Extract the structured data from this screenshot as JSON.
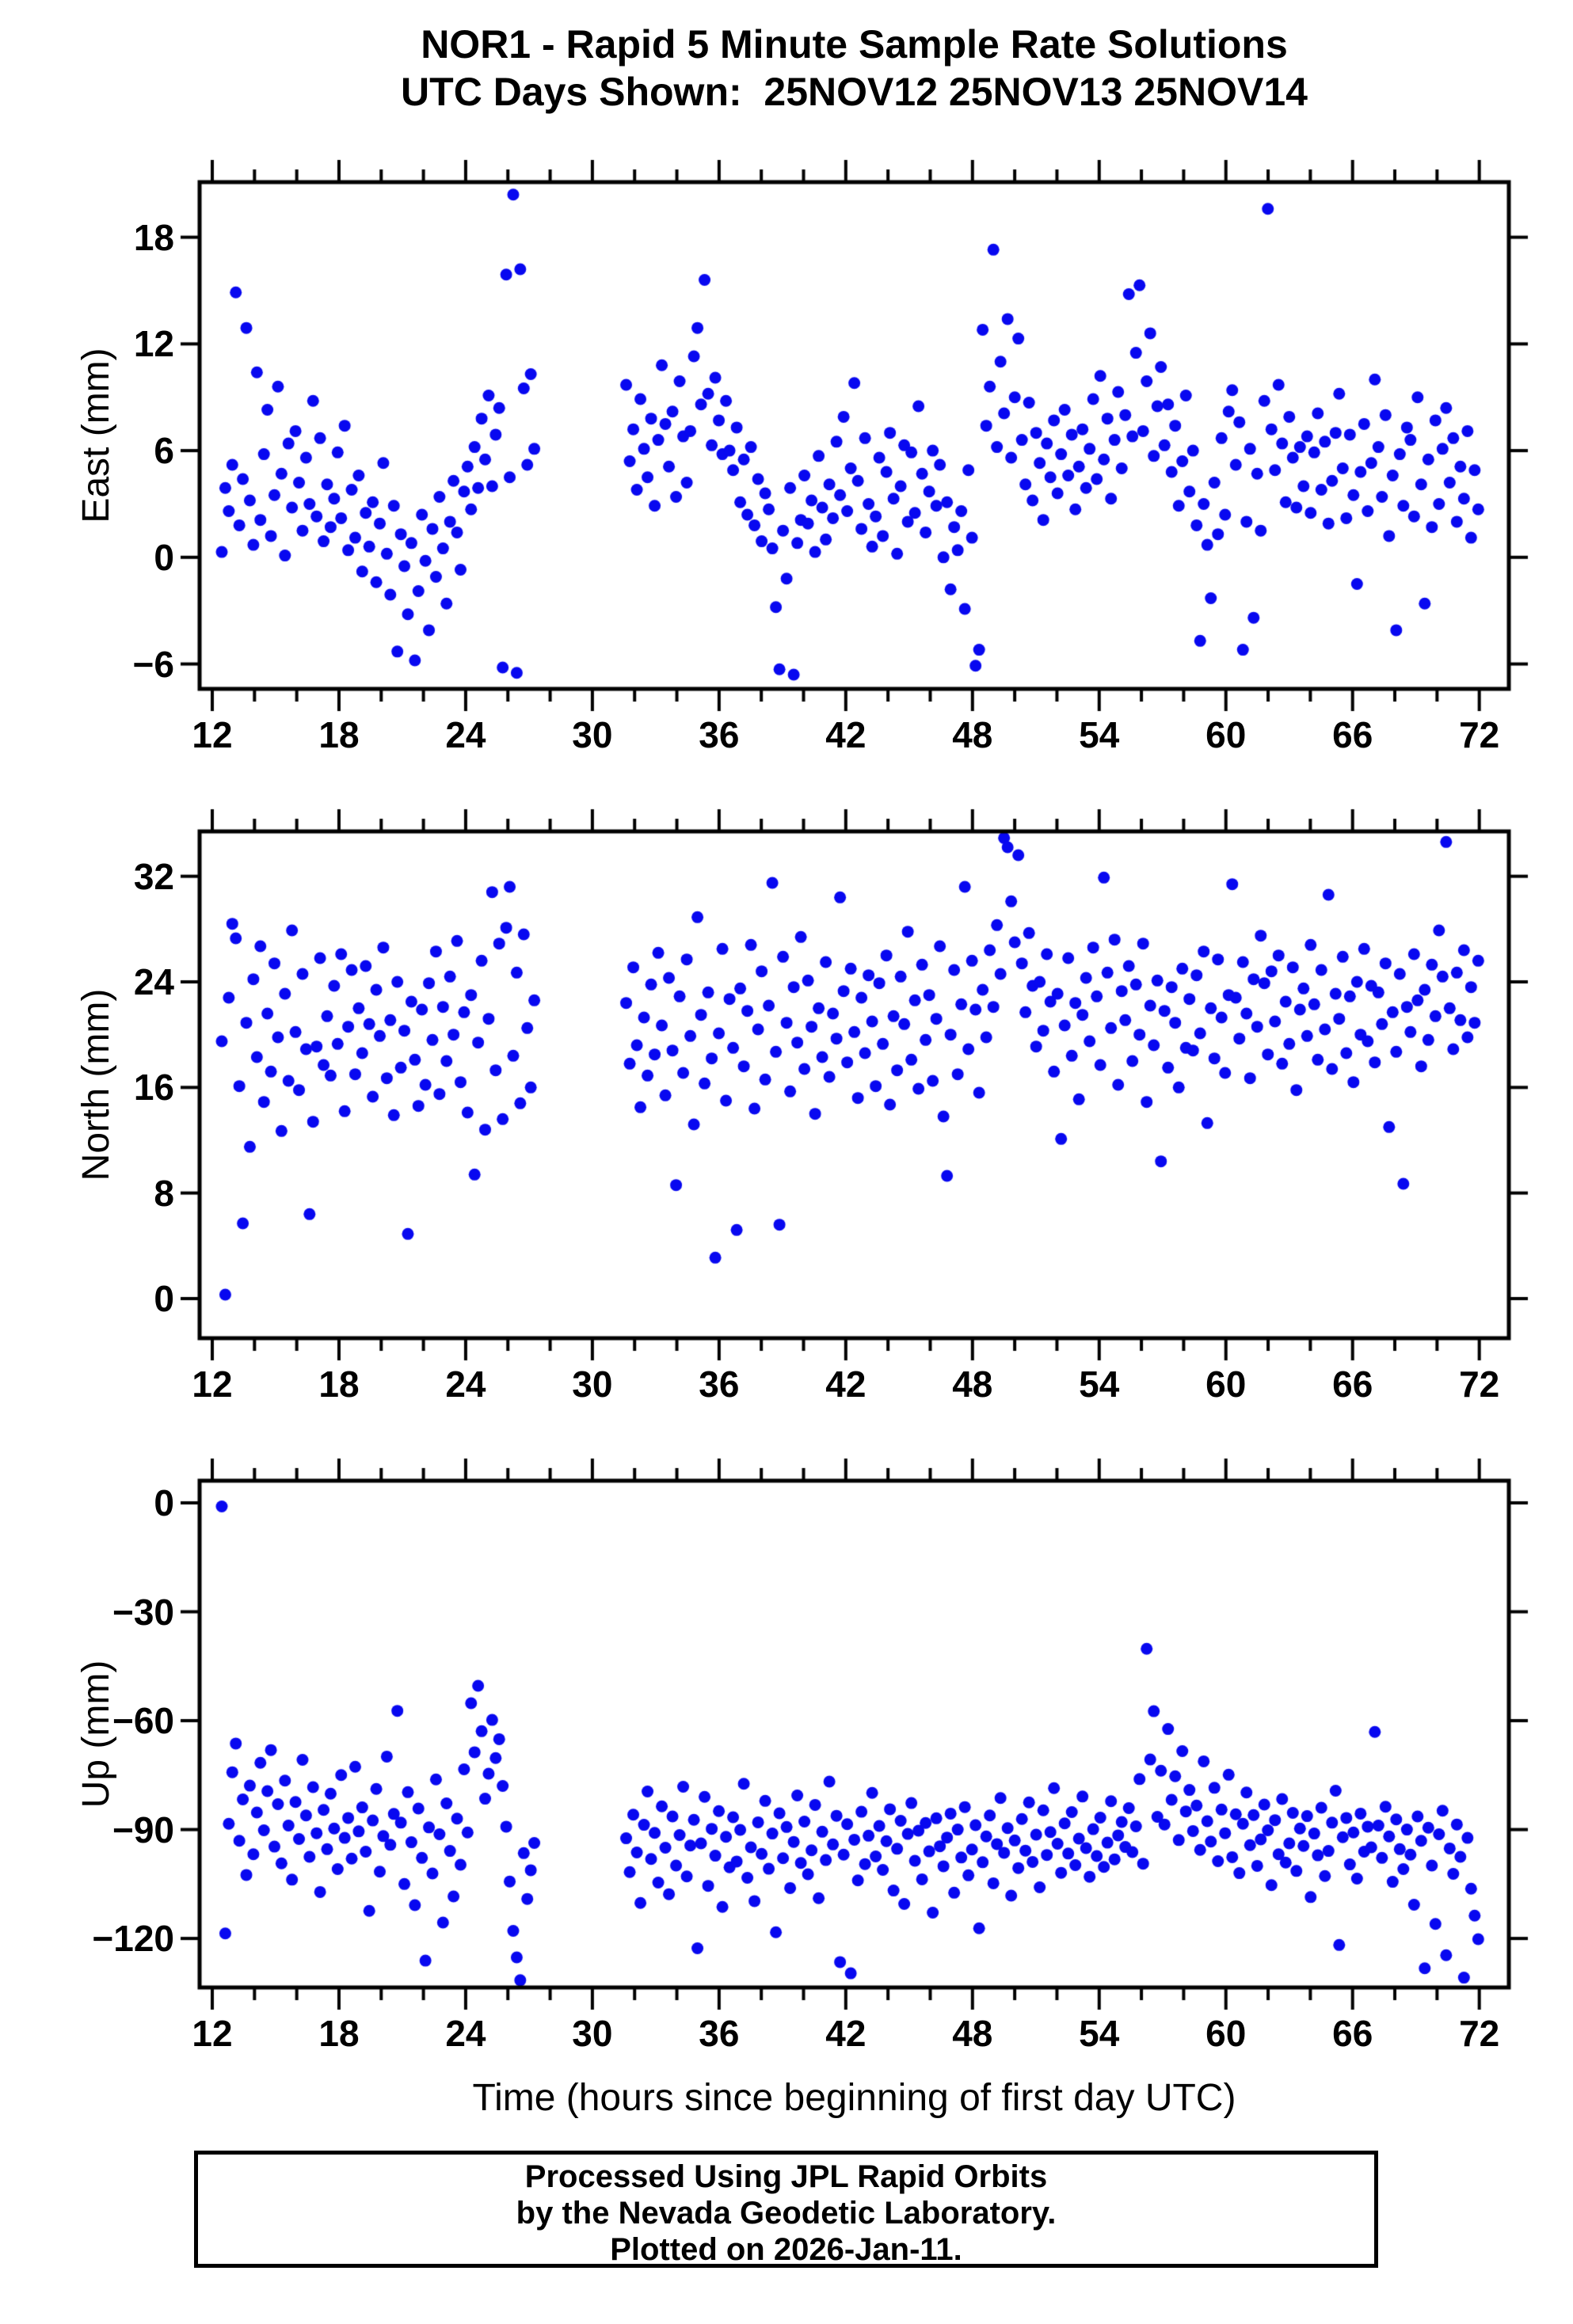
{
  "header": {
    "title_line1": "NOR1 - Rapid 5 Minute Sample Rate Solutions",
    "title_line2": "UTC Days Shown:  25NOV12 25NOV13 25NOV14"
  },
  "footer": {
    "line1": "Processed Using JPL Rapid Orbits",
    "line2": "by the Nevada Geodetic Laboratory.",
    "line3": "Plotted on 2026-Jan-11."
  },
  "chart_data": {
    "type": "scatter",
    "title": "NOR1 - Rapid 5 Minute Sample Rate Solutions",
    "subtitle": "UTC Days Shown:  25NOV12 25NOV13 25NOV14",
    "xlabel": "Time (hours since beginning of first day UTC)",
    "xlim": [
      11.4,
      73.4
    ],
    "x_major_ticks": [
      12,
      18,
      24,
      30,
      36,
      42,
      48,
      54,
      60,
      66,
      72
    ],
    "x_minor_step": 2,
    "marker_color": "#0808f0",
    "frame_color": "#000000",
    "grid": "off",
    "legend": "none",
    "segments": [
      {
        "t_start": 12.45,
        "t_end": 27.25,
        "n": 90
      },
      {
        "t_start": 31.6,
        "t_end": 71.95,
        "n": 240
      }
    ],
    "panels": [
      {
        "name": "east",
        "ylabel": "East (mm)",
        "ylim": [
          -7.4,
          21.1
        ],
        "y_ticks": [
          -6,
          0,
          6,
          12,
          18
        ],
        "values": [
          0.3,
          3.9,
          2.6,
          5.2,
          14.9,
          1.8,
          4.4,
          12.9,
          3.2,
          0.7,
          10.4,
          2.1,
          5.8,
          8.3,
          1.2,
          3.5,
          9.6,
          4.7,
          0.1,
          6.4,
          2.8,
          7.1,
          4.2,
          1.5,
          5.6,
          3.0,
          8.8,
          2.3,
          6.7,
          0.9,
          4.1,
          1.7,
          3.3,
          5.9,
          2.2,
          7.4,
          0.4,
          3.8,
          1.1,
          4.6,
          -0.8,
          2.5,
          0.6,
          3.1,
          -1.4,
          1.9,
          5.3,
          0.2,
          -2.1,
          2.9,
          -5.3,
          1.3,
          -0.5,
          -3.2,
          0.8,
          -5.8,
          -1.9,
          2.4,
          -0.2,
          -4.1,
          1.6,
          -1.1,
          3.4,
          0.5,
          -2.6,
          2.0,
          4.3,
          1.4,
          -0.7,
          3.7,
          5.1,
          2.7,
          6.2,
          3.9,
          7.8,
          5.5,
          9.1,
          4.0,
          6.9,
          8.4,
          -6.2,
          15.9,
          4.5,
          20.4,
          -6.5,
          16.2,
          9.5,
          5.2,
          10.3,
          6.1,
          9.7,
          5.4,
          7.2,
          3.8,
          8.9,
          6.1,
          4.5,
          7.8,
          2.9,
          6.6,
          10.8,
          7.5,
          5.1,
          8.2,
          3.4,
          9.9,
          6.8,
          4.2,
          7.1,
          11.3,
          12.9,
          8.6,
          15.6,
          9.2,
          6.3,
          10.1,
          7.7,
          5.8,
          8.8,
          6.0,
          4.9,
          7.3,
          3.1,
          5.5,
          2.4,
          6.2,
          1.8,
          4.4,
          0.9,
          3.6,
          2.7,
          0.5,
          -2.8,
          -6.3,
          1.5,
          -1.2,
          3.9,
          -6.6,
          0.8,
          2.1,
          4.6,
          1.9,
          3.2,
          0.3,
          5.7,
          2.8,
          1.0,
          4.1,
          2.2,
          6.5,
          3.5,
          7.9,
          2.6,
          5.0,
          9.8,
          4.3,
          1.6,
          6.7,
          3.0,
          0.6,
          2.3,
          5.6,
          1.2,
          4.8,
          7.0,
          3.3,
          0.2,
          4.0,
          6.3,
          2.0,
          5.9,
          2.5,
          8.5,
          4.7,
          1.4,
          3.7,
          6.0,
          2.9,
          5.2,
          0.0,
          3.1,
          -1.8,
          1.7,
          0.4,
          2.6,
          -2.9,
          4.9,
          1.1,
          -6.1,
          -5.2,
          12.8,
          7.4,
          9.6,
          17.3,
          6.2,
          11.0,
          8.1,
          13.4,
          5.6,
          9.0,
          12.3,
          6.6,
          4.1,
          8.7,
          3.2,
          7.0,
          5.3,
          2.1,
          6.4,
          4.5,
          7.7,
          3.6,
          5.8,
          8.3,
          4.6,
          6.9,
          2.7,
          5.1,
          7.2,
          3.9,
          6.1,
          8.9,
          4.4,
          10.2,
          5.5,
          7.8,
          3.3,
          6.6,
          9.3,
          5.0,
          8.0,
          14.8,
          6.8,
          11.5,
          15.3,
          7.1,
          9.9,
          12.6,
          5.7,
          8.5,
          10.7,
          6.3,
          8.6,
          4.8,
          7.4,
          2.9,
          5.4,
          9.1,
          3.7,
          6.0,
          1.8,
          -4.7,
          3.0,
          0.7,
          -2.3,
          4.2,
          1.3,
          6.7,
          2.4,
          8.2,
          9.4,
          5.2,
          7.6,
          -5.2,
          2.0,
          6.1,
          -3.4,
          4.7,
          1.5,
          8.8,
          19.6,
          7.2,
          4.9,
          9.7,
          6.4,
          3.1,
          7.9,
          5.6,
          2.8,
          6.2,
          4.0,
          6.8,
          2.5,
          5.9,
          8.1,
          3.8,
          6.5,
          1.9,
          4.3,
          7.0,
          9.2,
          5.0,
          2.2,
          6.9,
          3.5,
          -1.5,
          4.8,
          7.5,
          2.6,
          5.3,
          10.0,
          6.2,
          3.4,
          8.0,
          1.2,
          4.6,
          -4.1,
          5.8,
          2.9,
          7.3,
          6.6,
          2.3,
          9.0,
          4.1,
          -2.6,
          5.5,
          1.7,
          7.7,
          3.0,
          6.1,
          8.4,
          4.2,
          6.7,
          2.0,
          5.1,
          3.3,
          7.1,
          1.1,
          4.9,
          2.7
        ]
      },
      {
        "name": "north",
        "ylabel": "North (mm)",
        "ylim": [
          -3.0,
          35.4
        ],
        "y_ticks": [
          0,
          8,
          16,
          24,
          32
        ],
        "values": [
          19.5,
          0.3,
          22.8,
          28.4,
          27.3,
          16.1,
          5.7,
          20.9,
          11.5,
          24.2,
          18.3,
          26.7,
          14.9,
          21.6,
          17.2,
          25.4,
          19.8,
          12.7,
          23.1,
          16.5,
          27.9,
          20.2,
          15.8,
          24.6,
          18.9,
          6.4,
          13.4,
          19.1,
          25.8,
          17.7,
          21.4,
          16.9,
          23.7,
          19.3,
          26.1,
          14.2,
          20.6,
          24.9,
          17.0,
          22.0,
          18.6,
          25.2,
          20.8,
          15.3,
          23.4,
          19.9,
          26.6,
          16.7,
          21.1,
          13.9,
          24.0,
          17.5,
          20.3,
          4.9,
          22.5,
          18.1,
          14.6,
          21.9,
          16.2,
          23.9,
          19.6,
          26.3,
          15.5,
          22.1,
          18.0,
          24.4,
          20.0,
          27.1,
          16.4,
          21.7,
          14.1,
          23.0,
          9.4,
          19.4,
          25.6,
          12.8,
          21.2,
          30.8,
          17.3,
          26.9,
          13.6,
          28.1,
          31.2,
          18.4,
          24.7,
          14.8,
          27.6,
          20.5,
          16.0,
          22.6,
          22.4,
          17.8,
          25.1,
          19.2,
          14.5,
          21.3,
          16.9,
          23.8,
          18.5,
          26.2,
          20.7,
          15.4,
          24.3,
          18.8,
          8.6,
          22.9,
          17.1,
          25.7,
          19.9,
          13.2,
          28.9,
          21.5,
          16.3,
          23.2,
          18.2,
          3.1,
          20.1,
          26.5,
          15.0,
          22.7,
          19.0,
          5.2,
          23.5,
          17.6,
          21.8,
          26.8,
          14.4,
          20.4,
          24.8,
          16.6,
          22.2,
          31.5,
          18.7,
          5.6,
          25.9,
          20.9,
          15.7,
          23.6,
          19.4,
          27.4,
          17.4,
          24.1,
          20.6,
          14.0,
          22.0,
          18.3,
          25.5,
          16.8,
          21.6,
          19.7,
          30.4,
          23.3,
          17.9,
          25.0,
          20.2,
          15.2,
          22.8,
          18.6,
          24.5,
          21.0,
          16.1,
          23.9,
          19.3,
          26.0,
          14.7,
          21.4,
          17.3,
          24.4,
          20.8,
          27.8,
          18.1,
          22.6,
          15.9,
          25.3,
          19.6,
          23.0,
          16.5,
          21.2,
          26.7,
          13.8,
          9.3,
          20.0,
          24.9,
          17.0,
          22.3,
          31.2,
          18.9,
          25.6,
          21.9,
          15.6,
          23.4,
          19.8,
          26.4,
          22.1,
          28.3,
          24.6,
          34.9,
          34.2,
          30.1,
          27.0,
          33.6,
          25.4,
          21.7,
          27.7,
          23.7,
          19.1,
          24.0,
          20.3,
          26.1,
          22.5,
          17.2,
          23.1,
          12.1,
          20.7,
          25.8,
          18.4,
          22.4,
          15.1,
          21.5,
          24.3,
          19.5,
          26.6,
          22.9,
          17.7,
          31.9,
          24.7,
          20.5,
          27.2,
          16.2,
          23.3,
          21.1,
          25.2,
          18.0,
          23.8,
          20.0,
          26.9,
          14.9,
          22.2,
          19.2,
          24.1,
          10.4,
          21.8,
          17.5,
          23.6,
          20.9,
          16.0,
          25.0,
          19.0,
          22.7,
          18.8,
          24.5,
          20.1,
          26.3,
          13.3,
          22.0,
          18.2,
          25.7,
          21.3,
          17.1,
          23.0,
          31.4,
          22.8,
          19.7,
          25.5,
          21.6,
          16.7,
          24.2,
          20.6,
          27.5,
          23.9,
          18.5,
          24.8,
          21.0,
          26.0,
          17.8,
          22.5,
          19.3,
          25.1,
          15.8,
          21.9,
          23.5,
          19.9,
          26.8,
          22.3,
          18.1,
          24.9,
          20.4,
          30.6,
          17.4,
          23.1,
          21.2,
          25.9,
          18.6,
          22.9,
          16.4,
          24.0,
          20.0,
          26.5,
          19.5,
          23.7,
          17.9,
          23.2,
          20.8,
          25.4,
          13.0,
          21.7,
          18.7,
          24.6,
          8.7,
          22.1,
          20.2,
          26.1,
          22.6,
          17.6,
          23.4,
          19.6,
          25.3,
          21.4,
          27.9,
          24.4,
          34.6,
          22.0,
          18.9,
          24.7,
          21.1,
          26.4,
          19.8,
          23.6,
          20.9,
          25.6
        ]
      },
      {
        "name": "up",
        "ylabel": "Up (mm)",
        "ylim": [
          -133.5,
          6.1
        ],
        "y_ticks": [
          -120,
          -90,
          -60,
          -30,
          0
        ],
        "values": [
          -1.0,
          -118.6,
          -88.4,
          -74.2,
          -66.3,
          -93.1,
          -81.7,
          -102.5,
          -77.9,
          -96.8,
          -85.3,
          -71.6,
          -90.2,
          -79.4,
          -68.1,
          -94.7,
          -83.0,
          -99.3,
          -76.5,
          -88.9,
          -103.8,
          -82.4,
          -92.6,
          -70.8,
          -86.1,
          -97.5,
          -78.3,
          -91.0,
          -107.2,
          -84.6,
          -95.4,
          -80.1,
          -89.7,
          -100.9,
          -75.0,
          -92.3,
          -86.8,
          -98.0,
          -72.7,
          -90.5,
          -83.9,
          -96.1,
          -112.4,
          -87.5,
          -78.8,
          -101.6,
          -91.8,
          -69.9,
          -94.2,
          -85.7,
          -57.3,
          -88.1,
          -105.0,
          -79.7,
          -93.5,
          -110.8,
          -84.2,
          -97.8,
          -126.1,
          -89.4,
          -102.1,
          -76.2,
          -91.3,
          -115.6,
          -82.8,
          -95.9,
          -108.4,
          -87.0,
          -99.7,
          -73.4,
          -90.8,
          -55.2,
          -68.7,
          -50.4,
          -62.9,
          -81.5,
          -74.6,
          -59.8,
          -70.3,
          -65.1,
          -78.0,
          -89.2,
          -104.3,
          -117.9,
          -125.2,
          -131.5,
          -96.5,
          -109.1,
          -101.2,
          -93.7,
          -92.4,
          -101.7,
          -85.9,
          -96.3,
          -110.2,
          -88.7,
          -79.5,
          -98.1,
          -90.9,
          -104.6,
          -83.6,
          -95.0,
          -107.8,
          -86.4,
          -99.9,
          -91.5,
          -78.2,
          -102.9,
          -94.4,
          -87.3,
          -122.7,
          -93.8,
          -81.0,
          -105.5,
          -89.8,
          -97.2,
          -84.9,
          -111.3,
          -92.0,
          -100.4,
          -86.6,
          -98.8,
          -90.1,
          -77.4,
          -103.3,
          -94.9,
          -109.7,
          -88.0,
          -96.7,
          -82.1,
          -100.8,
          -91.1,
          -118.3,
          -85.5,
          -97.9,
          -89.3,
          -106.1,
          -93.4,
          -80.6,
          -99.2,
          -87.8,
          -102.3,
          -95.7,
          -83.2,
          -108.9,
          -90.6,
          -98.4,
          -76.8,
          -94.1,
          -86.2,
          -126.5,
          -96.9,
          -88.5,
          -129.6,
          -92.8,
          -104.0,
          -85.1,
          -99.5,
          -91.7,
          -79.9,
          -97.4,
          -89.0,
          -101.1,
          -93.2,
          -84.4,
          -106.8,
          -95.3,
          -87.6,
          -110.5,
          -91.2,
          -82.7,
          -98.6,
          -90.3,
          -103.7,
          -88.2,
          -96.0,
          -112.9,
          -86.9,
          -94.6,
          -100.1,
          -92.2,
          -85.6,
          -107.4,
          -90.0,
          -97.7,
          -83.8,
          -102.6,
          -95.5,
          -88.8,
          -117.2,
          -99.0,
          -91.9,
          -86.1,
          -104.8,
          -94.0,
          -81.3,
          -96.4,
          -89.6,
          -108.2,
          -93.0,
          -100.6,
          -87.1,
          -95.8,
          -82.5,
          -98.9,
          -91.4,
          -105.9,
          -84.7,
          -97.0,
          -90.7,
          -78.6,
          -93.9,
          -101.9,
          -88.3,
          -96.6,
          -85.2,
          -99.8,
          -92.5,
          -80.9,
          -95.1,
          -103.0,
          -89.9,
          -97.3,
          -86.7,
          -100.3,
          -93.6,
          -82.2,
          -98.2,
          -91.6,
          -87.9,
          -94.8,
          -84.1,
          -96.2,
          -89.1,
          -76.1,
          -99.4,
          -40.2,
          -70.7,
          -57.4,
          -86.5,
          -73.8,
          -88.6,
          -62.3,
          -81.8,
          -75.3,
          -92.9,
          -68.4,
          -85.0,
          -79.1,
          -90.4,
          -83.4,
          -95.6,
          -71.2,
          -87.7,
          -93.3,
          -78.5,
          -98.7,
          -84.5,
          -91.0,
          -74.9,
          -97.6,
          -85.8,
          -102.0,
          -88.4,
          -79.8,
          -94.3,
          -86.0,
          -100.0,
          -92.7,
          -83.1,
          -90.2,
          -105.3,
          -87.4,
          -96.8,
          -81.6,
          -99.1,
          -93.8,
          -85.4,
          -101.4,
          -89.7,
          -94.5,
          -86.3,
          -108.6,
          -91.1,
          -97.1,
          -84.0,
          -102.8,
          -95.9,
          -88.1,
          -79.3,
          -121.8,
          -92.1,
          -86.8,
          -99.6,
          -90.8,
          -103.5,
          -85.6,
          -96.1,
          -89.2,
          -94.9,
          -63.1,
          -88.9,
          -97.8,
          -83.7,
          -91.9,
          -104.4,
          -87.2,
          -95.4,
          -100.9,
          -90.0,
          -96.9,
          -110.7,
          -86.4,
          -93.1,
          -128.2,
          -89.5,
          -99.9,
          -116.0,
          -91.3,
          -84.8,
          -124.6,
          -95.2,
          -102.2,
          -88.6,
          -97.5,
          -130.8,
          -92.3,
          -106.3,
          -113.7,
          -120.2
        ]
      }
    ]
  }
}
